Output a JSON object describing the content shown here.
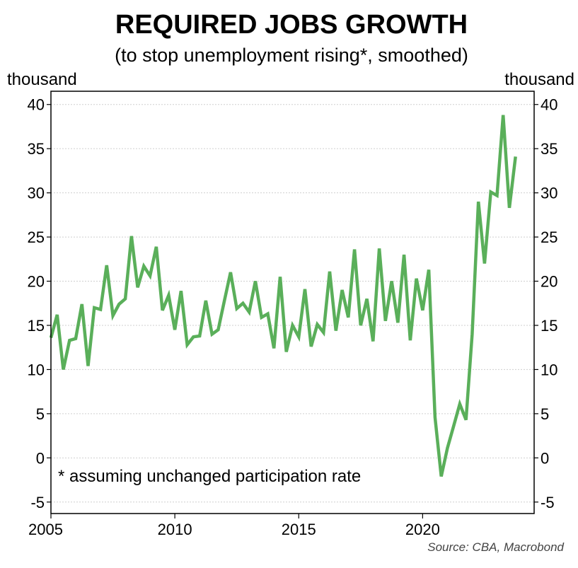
{
  "chart_data": {
    "type": "line",
    "title": "REQUIRED JOBS GROWTH",
    "subtitle": "(to stop unemployment rising*, smoothed)",
    "ylabel_left": "thousand",
    "ylabel_right": "thousand",
    "footnote": "*  assuming unchanged participation rate",
    "source": "Source: CBA, Macrobond",
    "xlim": [
      2005.0,
      2024.5
    ],
    "ylim": [
      -6.3,
      41.5
    ],
    "x_ticks": [
      2005,
      2010,
      2015,
      2020
    ],
    "x_tick_labels": [
      "2005",
      "2010",
      "2015",
      "2020"
    ],
    "y_ticks": [
      -5,
      0,
      5,
      10,
      15,
      20,
      25,
      30,
      35,
      40
    ],
    "y_tick_labels": [
      "-5",
      "0",
      "5",
      "10",
      "15",
      "20",
      "25",
      "30",
      "35",
      "40"
    ],
    "grid": true,
    "colors": {
      "line": "#5aaf5a",
      "grid": "#cfcfcf",
      "frame": "#000000"
    },
    "series": [
      {
        "x": [
          2005.0,
          2005.25,
          2005.5,
          2005.75,
          2006.0,
          2006.25,
          2006.5,
          2006.75,
          2007.0,
          2007.25,
          2007.5,
          2007.75,
          2008.0,
          2008.25,
          2008.5,
          2008.75,
          2009.0,
          2009.25,
          2009.5,
          2009.75,
          2010.0,
          2010.25,
          2010.5,
          2010.75,
          2011.0,
          2011.25,
          2011.5,
          2011.75,
          2012.0,
          2012.25,
          2012.5,
          2012.75,
          2013.0,
          2013.25,
          2013.5,
          2013.75,
          2014.0,
          2014.25,
          2014.5,
          2014.75,
          2015.0,
          2015.25,
          2015.5,
          2015.75,
          2016.0,
          2016.25,
          2016.5,
          2016.75,
          2017.0,
          2017.25,
          2017.5,
          2017.75,
          2018.0,
          2018.25,
          2018.5,
          2018.75,
          2019.0,
          2019.25,
          2019.5,
          2019.75,
          2020.0,
          2020.25,
          2020.5,
          2020.75,
          2021.0,
          2021.25,
          2021.5,
          2021.75,
          2022.0,
          2022.25,
          2022.5,
          2022.75,
          2023.0,
          2023.25,
          2023.5,
          2023.75
        ],
        "values": [
          13.6,
          16.2,
          10.0,
          13.3,
          13.5,
          17.4,
          10.4,
          17.0,
          16.8,
          21.8,
          16.1,
          17.4,
          18.0,
          25.1,
          19.3,
          21.7,
          20.6,
          23.9,
          16.7,
          18.4,
          14.5,
          18.9,
          12.8,
          13.7,
          13.8,
          17.8,
          14.0,
          14.5,
          17.8,
          21.0,
          16.9,
          17.5,
          16.5,
          20.0,
          15.9,
          16.3,
          12.4,
          20.5,
          12.0,
          15.0,
          13.7,
          19.1,
          12.6,
          15.1,
          14.2,
          21.1,
          14.4,
          19.0,
          15.9,
          23.6,
          15.0,
          18.0,
          13.2,
          23.7,
          15.5,
          20.0,
          15.3,
          23.0,
          13.3,
          20.3,
          16.7,
          21.3,
          4.6,
          -2.1,
          1.1,
          3.6,
          6.1,
          4.3,
          14.0,
          29.0,
          22.0,
          30.1,
          29.7,
          38.8,
          28.3,
          34.1
        ]
      }
    ]
  }
}
